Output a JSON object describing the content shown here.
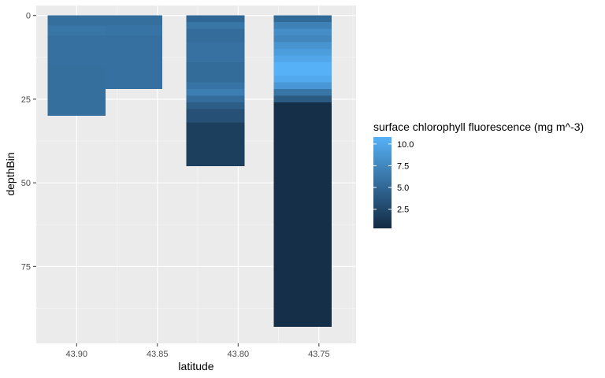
{
  "chart_data": {
    "type": "heatmap",
    "xlabel": "latitude",
    "ylabel": "depthBin",
    "x_reversed": true,
    "y_reversed": true,
    "xlim": [
      43.925,
      43.727
    ],
    "ylim": [
      -3,
      98
    ],
    "x_ticks": [
      43.9,
      43.85,
      43.8,
      43.75
    ],
    "x_tick_labels": [
      "43.90",
      "43.85",
      "43.80",
      "43.75"
    ],
    "y_ticks": [
      0,
      25,
      50,
      75
    ],
    "y_tick_labels": [
      "0",
      "25",
      "50",
      "75"
    ],
    "grid": true,
    "legend": {
      "title": "surface chlorophyll fluorescence (mg m^-3)",
      "position": "right",
      "scale_min": 0.3,
      "scale_max": 10.8,
      "breaks": [
        2.5,
        5.0,
        7.5,
        10.0
      ],
      "break_labels": [
        "2.5",
        "5.0",
        "7.5",
        "10.0"
      ],
      "color_low": "#132B43",
      "color_high": "#56B1F7"
    },
    "series": [
      {
        "lat_start": 43.918,
        "lat_end": 43.882,
        "segments": [
          {
            "from": 0,
            "to": 3,
            "value": 5.6
          },
          {
            "from": 3,
            "to": 6,
            "value": 6.2
          },
          {
            "from": 6,
            "to": 15,
            "value": 5.7
          },
          {
            "from": 15,
            "to": 30,
            "value": 5.6
          }
        ]
      },
      {
        "lat_start": 43.882,
        "lat_end": 43.847,
        "segments": [
          {
            "from": 0,
            "to": 3,
            "value": 5.6
          },
          {
            "from": 3,
            "to": 6,
            "value": 6.0
          },
          {
            "from": 6,
            "to": 22,
            "value": 5.7
          }
        ]
      },
      {
        "lat_start": 43.832,
        "lat_end": 43.796,
        "segments": [
          {
            "from": 0,
            "to": 2,
            "value": 5.0
          },
          {
            "from": 2,
            "to": 4,
            "value": 6.2
          },
          {
            "from": 4,
            "to": 8,
            "value": 5.5
          },
          {
            "from": 8,
            "to": 14,
            "value": 5.8
          },
          {
            "from": 14,
            "to": 20,
            "value": 5.3
          },
          {
            "from": 20,
            "to": 22,
            "value": 6.0
          },
          {
            "from": 22,
            "to": 24,
            "value": 6.8
          },
          {
            "from": 24,
            "to": 26,
            "value": 5.5
          },
          {
            "from": 26,
            "to": 28,
            "value": 4.2
          },
          {
            "from": 28,
            "to": 32,
            "value": 3.2
          },
          {
            "from": 32,
            "to": 45,
            "value": 1.9
          }
        ]
      },
      {
        "lat_start": 43.778,
        "lat_end": 43.742,
        "segments": [
          {
            "from": 0,
            "to": 2,
            "value": 5.2
          },
          {
            "from": 2,
            "to": 4,
            "value": 7.0
          },
          {
            "from": 4,
            "to": 6,
            "value": 8.0
          },
          {
            "from": 6,
            "to": 8,
            "value": 7.5
          },
          {
            "from": 8,
            "to": 10,
            "value": 8.5
          },
          {
            "from": 10,
            "to": 12,
            "value": 9.2
          },
          {
            "from": 12,
            "to": 14,
            "value": 10.0
          },
          {
            "from": 14,
            "to": 18,
            "value": 10.8
          },
          {
            "from": 18,
            "to": 20,
            "value": 10.2
          },
          {
            "from": 20,
            "to": 22,
            "value": 8.8
          },
          {
            "from": 22,
            "to": 24,
            "value": 6.2
          },
          {
            "from": 24,
            "to": 26,
            "value": 4.0
          },
          {
            "from": 26,
            "to": 93,
            "value": 0.6
          }
        ]
      }
    ]
  }
}
